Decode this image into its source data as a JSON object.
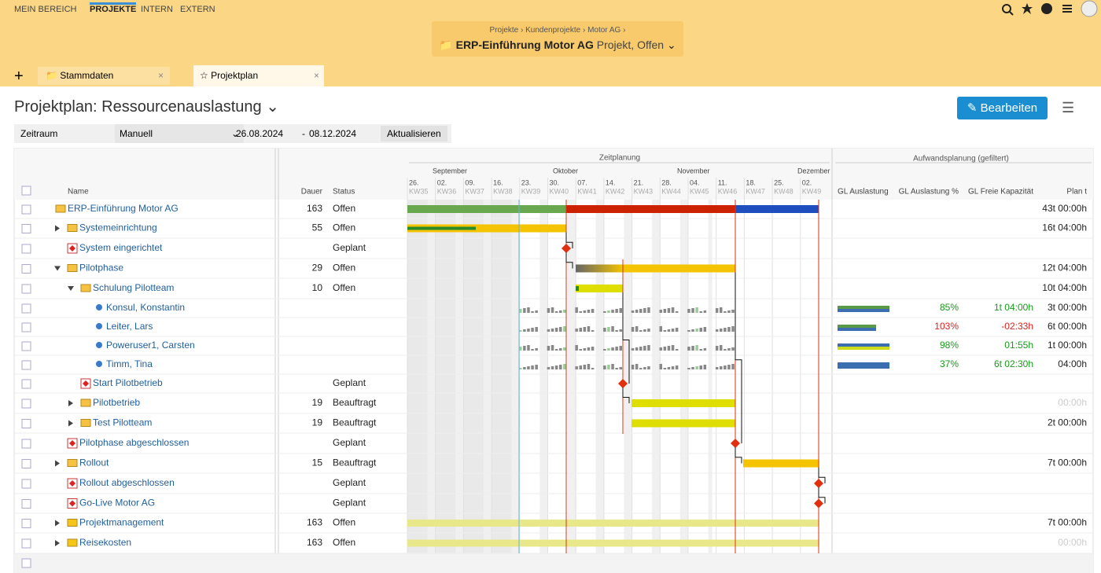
{
  "nav": {
    "items": [
      "MEIN BEREICH",
      "PROJEKTE",
      "INTERN",
      "EXTERN"
    ]
  },
  "breadcrumb": {
    "path": [
      "Projekte",
      "Kundenprojekte",
      "Motor AG"
    ],
    "title": "ERP-Einführung Motor AG",
    "subtitle": "Projekt, Offen"
  },
  "tabs": [
    "Stammdaten",
    "Projektplan"
  ],
  "page": {
    "title": "Projektplan: Ressourcenauslastung",
    "edit_button": "Bearbeiten"
  },
  "filter": {
    "label": "Zeitraum",
    "mode": "Manuell",
    "from": "26.08.2024",
    "separator": "-",
    "to": "08.12.2024",
    "button": "Aktualisieren"
  },
  "table": {
    "header": {
      "name": "Name",
      "dauer": "Dauer",
      "status": "Status",
      "zeitplanung": "Zeitplanung",
      "aufwand": "Aufwandsplanung (gefiltert)",
      "columns": [
        "GL Auslastung",
        "GL Auslastung %",
        "GL Freie Kapazität",
        "Plan t"
      ]
    },
    "months": [
      "September",
      "Oktober",
      "November",
      "Dezember"
    ],
    "week_dates": [
      "26.",
      "02.",
      "09.",
      "16.",
      "23.",
      "30.",
      "07.",
      "14.",
      "21.",
      "28.",
      "04.",
      "11.",
      "18.",
      "25.",
      "02."
    ],
    "weeks": [
      "KW35",
      "KW36",
      "KW37",
      "KW38",
      "KW39",
      "KW40",
      "KW41",
      "KW42",
      "KW43",
      "KW44",
      "KW45",
      "KW46",
      "KW47",
      "KW48",
      "KW49"
    ],
    "rows": [
      {
        "name": "ERP-Einführung Motor AG",
        "dauer": 163,
        "status": "Offen",
        "plan": "43t 00:00h"
      },
      {
        "name": "Systemeinrichtung",
        "dauer": 55,
        "status": "Offen",
        "plan": "16t 04:00h"
      },
      {
        "name": "System eingerichtet",
        "status": "Geplant"
      },
      {
        "name": "Pilotphase",
        "dauer": 29,
        "status": "Offen",
        "plan": "12t 04:00h"
      },
      {
        "name": "Schulung Pilotteam",
        "dauer": 10,
        "status": "Offen",
        "plan": "10t 04:00h"
      },
      {
        "name": "Konsul, Konstantin",
        "pct": "85%",
        "free": "1t 04:00h",
        "plan": "3t 00:00h"
      },
      {
        "name": "Leiter, Lars",
        "pct": "103%",
        "free": "-02:33h",
        "plan": "6t 00:00h"
      },
      {
        "name": "Poweruser1, Carsten",
        "pct": "98%",
        "free": "01:55h",
        "plan": "1t 00:00h"
      },
      {
        "name": "Timm, Tina",
        "pct": "37%",
        "free": "6t 02:30h",
        "plan": "04:00h"
      },
      {
        "name": "Start Pilotbetrieb",
        "status": "Geplant"
      },
      {
        "name": "Pilotbetrieb",
        "dauer": 19,
        "status": "Beauftragt",
        "plan": "00:00h"
      },
      {
        "name": "Test Pilotteam",
        "dauer": 19,
        "status": "Beauftragt",
        "plan": "2t 00:00h"
      },
      {
        "name": "Pilotphase abgeschlossen",
        "status": "Geplant"
      },
      {
        "name": "Rollout",
        "dauer": 15,
        "status": "Beauftragt",
        "plan": "7t 00:00h"
      },
      {
        "name": "Rollout abgeschlossen",
        "status": "Geplant"
      },
      {
        "name": "Go-Live Motor AG",
        "status": "Geplant"
      },
      {
        "name": "Projektmanagement",
        "dauer": 163,
        "status": "Offen",
        "plan": "7t 00:00h"
      },
      {
        "name": "Reisekosten",
        "dauer": 163,
        "status": "Offen",
        "plan": "00:00h"
      }
    ]
  }
}
